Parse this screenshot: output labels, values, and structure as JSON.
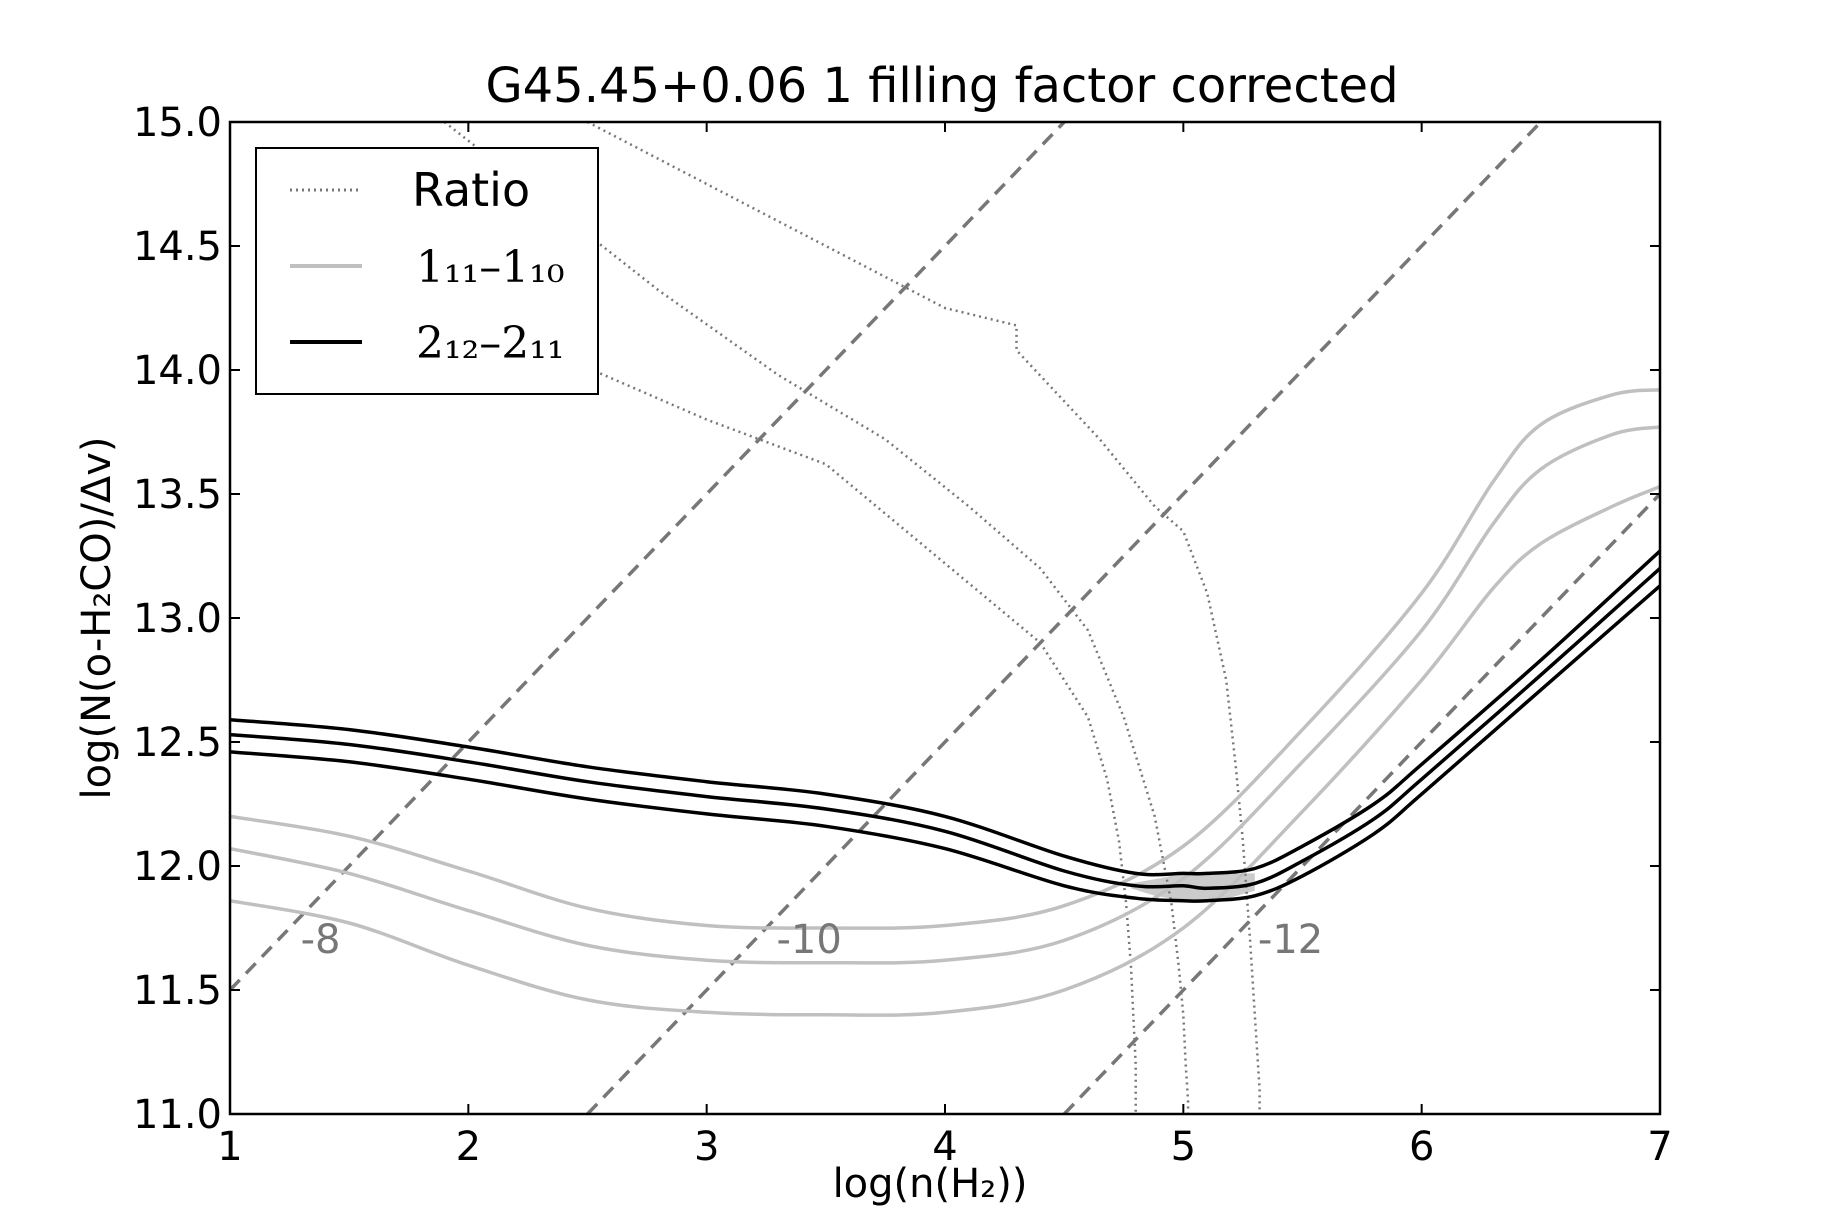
{
  "chart_data": {
    "type": "line",
    "title": "G45.45+0.06 1 filling factor corrected",
    "xlabel": "log(n(H₂))",
    "ylabel": "log(N(o-H₂CO)/Δv)",
    "xlim": [
      1,
      7
    ],
    "ylim": [
      11.0,
      15.0
    ],
    "xticks": [
      "1",
      "2",
      "3",
      "4",
      "5",
      "6",
      "7"
    ],
    "yticks": [
      "11.0",
      "11.5",
      "12.0",
      "12.5",
      "13.0",
      "13.5",
      "14.0",
      "14.5",
      "15.0"
    ],
    "legend": {
      "placement": "top-left",
      "entries": [
        {
          "label": "Ratio",
          "style": "dotted",
          "color": "#777777"
        },
        {
          "label": "1₁₁–1₁₀",
          "style": "solid",
          "color": "#c0c0c0"
        },
        {
          "label": "2₁₂–2₁₁",
          "style": "solid",
          "color": "#000000"
        }
      ]
    },
    "series": [
      {
        "group": "ratio",
        "style": "dotted",
        "color": "#777777",
        "x": [
          2.5,
          3.6,
          4.0,
          4.3,
          4.3,
          4.65,
          4.88,
          5.0,
          5.1,
          5.18,
          5.22,
          5.25,
          5.28,
          5.3,
          5.32,
          5.32
        ],
        "y": [
          15.0,
          14.45,
          14.25,
          14.18,
          14.08,
          13.72,
          13.45,
          13.35,
          13.1,
          12.75,
          12.4,
          12.1,
          11.7,
          11.4,
          11.1,
          11.0
        ]
      },
      {
        "group": "ratio",
        "style": "dotted",
        "color": "#777777",
        "x": [
          1.9,
          2.8,
          3.3,
          3.75,
          4.1,
          4.4,
          4.6,
          4.75,
          4.88,
          4.95,
          4.98,
          5.0,
          5.01,
          5.02,
          5.02
        ],
        "y": [
          15.0,
          14.32,
          13.98,
          13.72,
          13.45,
          13.2,
          12.95,
          12.6,
          12.2,
          11.85,
          11.6,
          11.4,
          11.2,
          11.05,
          11.0
        ]
      },
      {
        "group": "ratio",
        "style": "dotted",
        "color": "#777777",
        "x": [
          1.5,
          2.4,
          3.0,
          3.5,
          4.0,
          4.4,
          4.6,
          4.68,
          4.73,
          4.76,
          4.78,
          4.8,
          4.8
        ],
        "y": [
          14.6,
          14.05,
          13.8,
          13.62,
          13.22,
          12.9,
          12.6,
          12.35,
          12.1,
          11.85,
          11.6,
          11.2,
          11.0
        ]
      },
      {
        "group": "1_11-1_10",
        "style": "solid",
        "color": "#c0c0c0",
        "x": [
          1.0,
          1.5,
          2.0,
          2.5,
          3.0,
          3.5,
          4.0,
          4.5,
          5.0,
          5.5,
          6.0,
          6.3,
          6.5,
          6.8,
          7.0
        ],
        "y": [
          12.2,
          12.12,
          11.98,
          11.83,
          11.76,
          11.75,
          11.76,
          11.84,
          12.08,
          12.55,
          13.1,
          13.55,
          13.78,
          13.9,
          13.92
        ]
      },
      {
        "group": "1_11-1_10",
        "style": "solid",
        "color": "#c0c0c0",
        "x": [
          1.0,
          1.5,
          2.0,
          2.5,
          3.0,
          3.5,
          4.0,
          4.5,
          5.0,
          5.5,
          6.0,
          6.3,
          6.5,
          6.8,
          7.0
        ],
        "y": [
          12.07,
          11.97,
          11.82,
          11.68,
          11.62,
          11.61,
          11.62,
          11.7,
          11.95,
          12.42,
          12.95,
          13.38,
          13.6,
          13.74,
          13.77
        ]
      },
      {
        "group": "1_11-1_10",
        "style": "solid",
        "color": "#c0c0c0",
        "x": [
          1.0,
          1.5,
          2.0,
          2.5,
          3.0,
          3.5,
          4.0,
          4.5,
          5.0,
          5.5,
          6.0,
          6.3,
          6.5,
          6.8,
          7.0
        ],
        "y": [
          11.86,
          11.77,
          11.6,
          11.46,
          11.41,
          11.4,
          11.41,
          11.5,
          11.75,
          12.22,
          12.75,
          13.12,
          13.3,
          13.45,
          13.53
        ]
      },
      {
        "group": "2_12-2_11",
        "style": "solid",
        "color": "#000000",
        "x": [
          1.0,
          1.5,
          2.0,
          2.5,
          3.0,
          3.5,
          4.0,
          4.5,
          4.8,
          5.0,
          5.1,
          5.3,
          5.5,
          5.8,
          6.0,
          6.5,
          7.0
        ],
        "y": [
          12.59,
          12.55,
          12.48,
          12.4,
          12.34,
          12.29,
          12.2,
          12.04,
          11.97,
          11.97,
          11.97,
          11.99,
          12.08,
          12.25,
          12.41,
          12.83,
          13.27
        ]
      },
      {
        "group": "2_12-2_11",
        "style": "solid",
        "color": "#000000",
        "x": [
          1.0,
          1.5,
          2.0,
          2.5,
          3.0,
          3.5,
          4.0,
          4.5,
          4.8,
          5.0,
          5.1,
          5.3,
          5.5,
          5.8,
          6.0,
          6.5,
          7.0
        ],
        "y": [
          12.53,
          12.49,
          12.42,
          12.34,
          12.28,
          12.23,
          12.14,
          11.98,
          11.92,
          11.92,
          11.91,
          11.93,
          12.02,
          12.19,
          12.35,
          12.77,
          13.2
        ]
      },
      {
        "group": "2_12-2_11",
        "style": "solid",
        "color": "#000000",
        "x": [
          1.0,
          1.5,
          2.0,
          2.5,
          3.0,
          3.5,
          4.0,
          4.5,
          4.8,
          5.0,
          5.1,
          5.3,
          5.5,
          5.8,
          6.0,
          6.5,
          7.0
        ],
        "y": [
          12.46,
          12.42,
          12.35,
          12.27,
          12.21,
          12.16,
          12.07,
          11.92,
          11.87,
          11.86,
          11.86,
          11.88,
          11.96,
          12.13,
          12.29,
          12.71,
          13.13
        ]
      }
    ],
    "dashed_lines": [
      {
        "label": "-8",
        "x": [
          1.0,
          4.5
        ],
        "y": [
          11.5,
          15.0
        ],
        "label_pos": [
          1.38,
          11.65
        ]
      },
      {
        "label": "-10",
        "x": [
          2.5,
          6.5
        ],
        "y": [
          11.0,
          15.0
        ],
        "label_pos": [
          3.43,
          11.65
        ]
      },
      {
        "label": "-12",
        "x": [
          4.5,
          7.0
        ],
        "y": [
          11.0,
          13.5
        ],
        "label_pos": [
          5.45,
          11.65
        ]
      }
    ],
    "shaded_region": {
      "x": [
        4.78,
        4.9,
        5.0,
        5.15,
        5.3,
        5.3,
        5.15,
        5.0,
        4.88,
        4.78
      ],
      "y": [
        11.93,
        11.95,
        11.97,
        11.97,
        11.97,
        11.9,
        11.86,
        11.86,
        11.88,
        11.91
      ]
    }
  }
}
